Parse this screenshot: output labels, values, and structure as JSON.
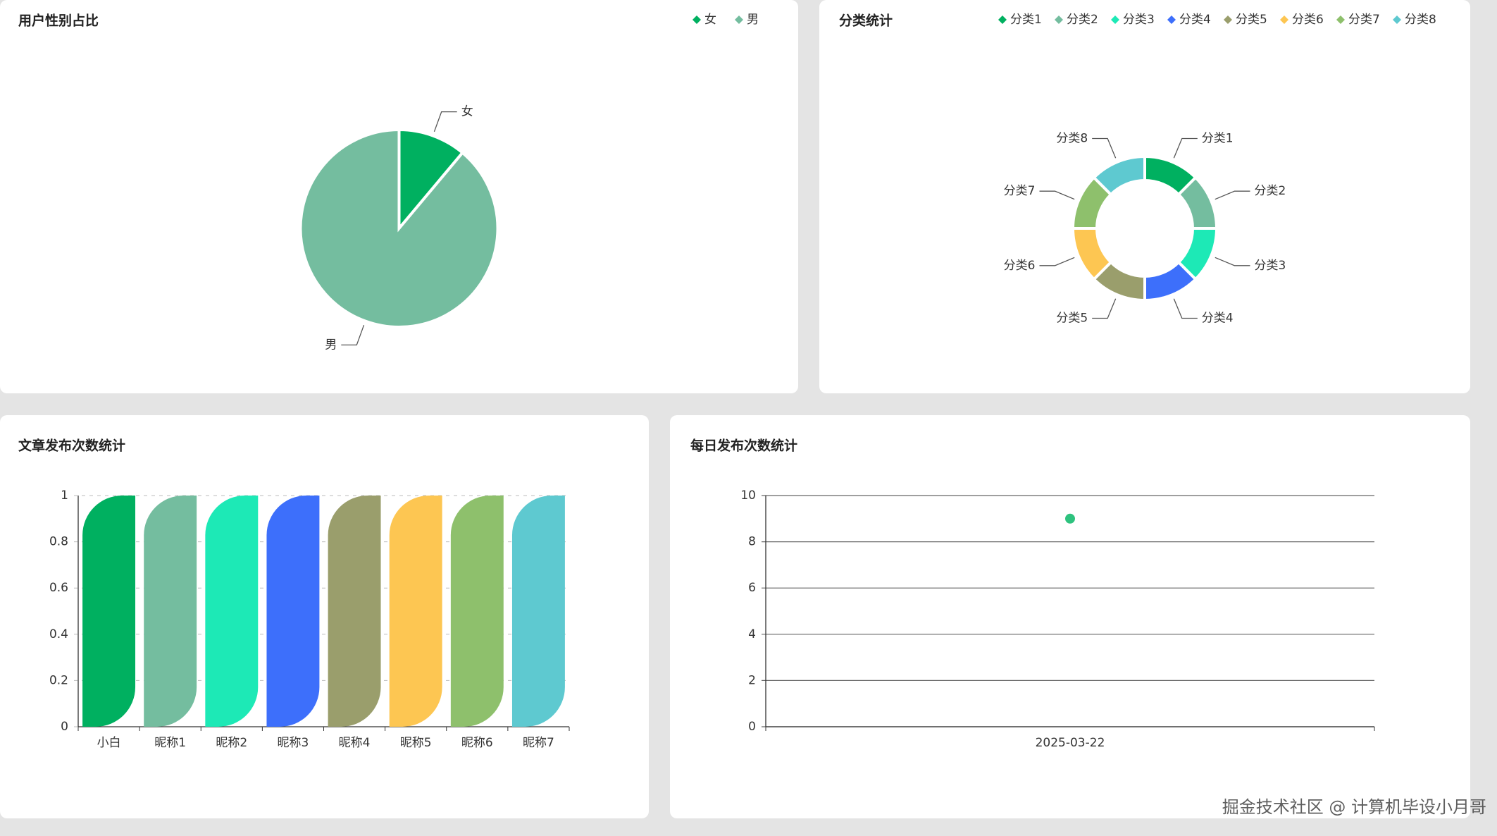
{
  "chart_data": [
    {
      "type": "pie",
      "title": "用户性别占比",
      "categories": [
        "女",
        "男"
      ],
      "values": [
        1,
        8
      ],
      "colors": [
        "#00b060",
        "#74bd9f"
      ],
      "legend": "top-right"
    },
    {
      "type": "donut",
      "title": "分类统计",
      "categories": [
        "分类1",
        "分类2",
        "分类3",
        "分类4",
        "分类5",
        "分类6",
        "分类7",
        "分类8"
      ],
      "values": [
        1,
        1,
        1,
        1,
        1,
        1,
        1,
        1
      ],
      "colors": [
        "#00b060",
        "#74bd9f",
        "#1de9b6",
        "#3d6ffb",
        "#9a9e6c",
        "#fdc652",
        "#8ec06c",
        "#5ec9d0"
      ],
      "legend": "top-right"
    },
    {
      "type": "bar",
      "title": "文章发布次数统计",
      "categories": [
        "小白",
        "昵称1",
        "昵称2",
        "昵称3",
        "昵称4",
        "昵称5",
        "昵称6",
        "昵称7"
      ],
      "values": [
        1,
        1,
        1,
        1,
        1,
        1,
        1,
        1
      ],
      "colors": [
        "#00b060",
        "#74bd9f",
        "#1de9b6",
        "#3d6ffb",
        "#9a9e6c",
        "#fdc652",
        "#8ec06c",
        "#5ec9d0"
      ],
      "ylim": [
        0,
        1
      ],
      "yticks": [
        0,
        0.2,
        0.4,
        0.6,
        0.8,
        1
      ]
    },
    {
      "type": "line",
      "title": "每日发布次数统计",
      "categories": [
        "2025-03-22"
      ],
      "values": [
        9
      ],
      "color": "#2ec27e",
      "ylim": [
        0,
        10
      ],
      "yticks": [
        0,
        2,
        4,
        6,
        8,
        10
      ],
      "grid": true
    }
  ],
  "watermark": "掘金技术社区 @ 计算机毕设小月哥"
}
